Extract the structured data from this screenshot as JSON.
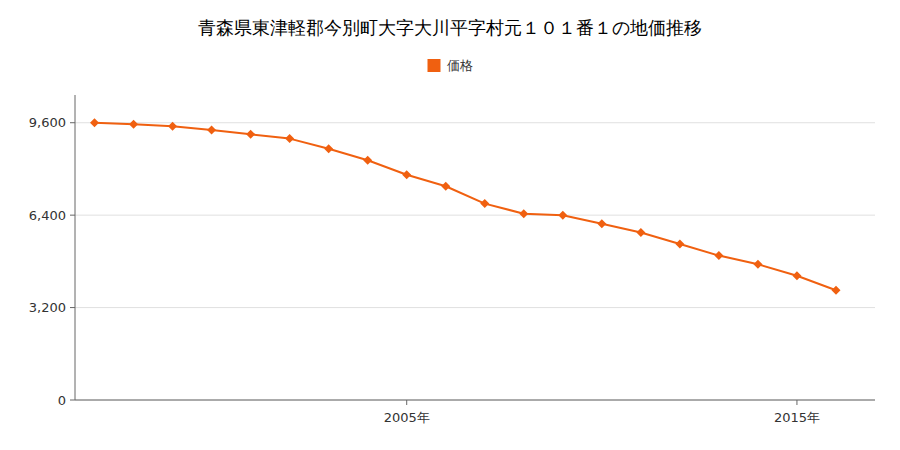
{
  "chart_data": {
    "type": "line",
    "title": "青森県東津軽郡今別町大字大川平字村元１０１番１の地価推移",
    "x": [
      1997,
      1998,
      1999,
      2000,
      2001,
      2002,
      2003,
      2004,
      2005,
      2006,
      2007,
      2008,
      2009,
      2010,
      2011,
      2012,
      2013,
      2014,
      2015,
      2016
    ],
    "series": [
      {
        "name": "価格",
        "color": "#f06010",
        "marker": "diamond",
        "line_style": "solid",
        "values": [
          9600,
          9550,
          9480,
          9350,
          9200,
          9050,
          8700,
          8300,
          7800,
          7400,
          6800,
          6450,
          6400,
          6100,
          5800,
          5400,
          5000,
          4700,
          4300,
          3800
        ]
      }
    ],
    "xlim": [
      1996.5,
      2017.0
    ],
    "xticks": [
      {
        "value": 2005,
        "label": "2005年"
      },
      {
        "value": 2015,
        "label": "2015年"
      }
    ],
    "ylim": [
      0,
      10560
    ],
    "yticks": [
      0,
      {
        "value": 3200,
        "label": "3,200"
      },
      {
        "value": 6400,
        "label": "6,400"
      },
      {
        "value": 9600,
        "label": "9,600"
      }
    ],
    "grid": "y",
    "legend": "top"
  }
}
